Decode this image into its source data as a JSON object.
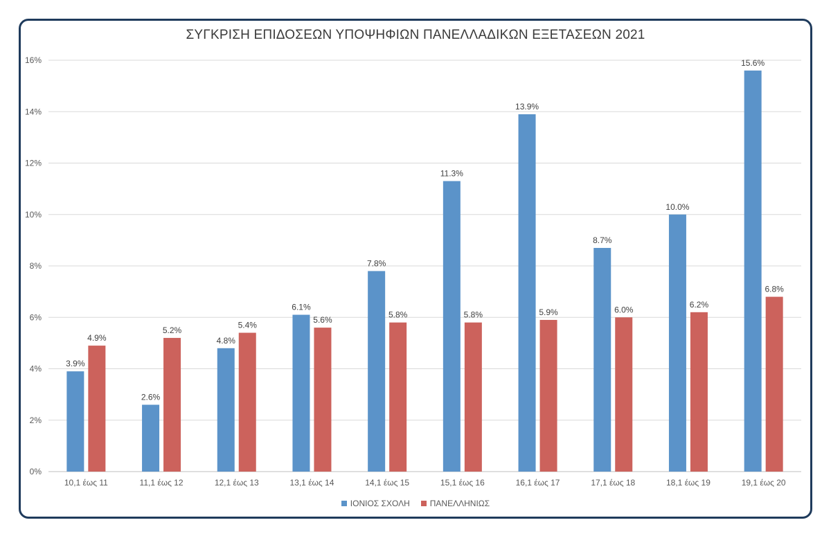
{
  "chart_data": {
    "type": "bar",
    "title": "ΣΥΓΚΡΙΣΗ ΕΠΙΔΟΣΕΩΝ ΥΠΟΨΗΦΙΩΝ ΠΑΝΕΛΛΑΔΙΚΩΝ ΕΞΕΤΑΣΕΩΝ 2021",
    "xlabel": "",
    "ylabel": "",
    "categories": [
      "10,1 έως 11",
      "11,1 έως 12",
      "12,1 έως 13",
      "13,1 έως 14",
      "14,1 έως 15",
      "15,1 έως 16",
      "16,1 έως 17",
      "17,1 έως 18",
      "18,1 έως 19",
      "19,1 έως 20"
    ],
    "series": [
      {
        "name": "ΙΟΝΙΟΣ ΣΧΟΛΗ",
        "color": "#5b93c9",
        "values": [
          3.9,
          2.6,
          4.8,
          6.1,
          7.8,
          11.3,
          13.9,
          8.7,
          10.0,
          15.6
        ],
        "labels": [
          "3.9%",
          "2.6%",
          "4.8%",
          "6.1%",
          "7.8%",
          "11.3%",
          "13.9%",
          "8.7%",
          "10.0%",
          "15.6%"
        ]
      },
      {
        "name": "ΠΑΝΕΛΛΗΝΙΩΣ",
        "color": "#cc625c",
        "values": [
          4.9,
          5.2,
          5.4,
          5.6,
          5.8,
          5.8,
          5.9,
          6.0,
          6.2,
          6.8
        ],
        "labels": [
          "4.9%",
          "5.2%",
          "5.4%",
          "5.6%",
          "5.8%",
          "5.8%",
          "5.9%",
          "6.0%",
          "6.2%",
          "6.8%"
        ]
      }
    ],
    "ylim": [
      0,
      16
    ],
    "yticks": [
      "0%",
      "2%",
      "4%",
      "6%",
      "8%",
      "10%",
      "12%",
      "14%",
      "16%"
    ],
    "grid": true,
    "legend_position": "bottom"
  }
}
